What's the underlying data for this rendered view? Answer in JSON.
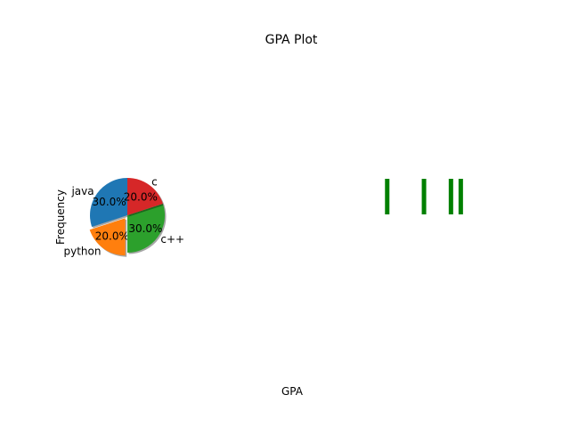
{
  "chart_data": [
    {
      "type": "pie",
      "title": "GPA Plot",
      "xlabel": "GPA",
      "ylabel": "Frequency",
      "slices": [
        {
          "label": "java",
          "value": 30,
          "pct_label": "30.0%",
          "color": "#1f77b4",
          "exploded": false
        },
        {
          "label": "python",
          "value": 20,
          "pct_label": "20.0%",
          "color": "#ff7f0e",
          "exploded": true
        },
        {
          "label": "c++",
          "value": 30,
          "pct_label": "30.0%",
          "color": "#2ca02c",
          "exploded": false
        },
        {
          "label": "c",
          "value": 20,
          "pct_label": "20.0%",
          "color": "#d62728",
          "exploded": false
        }
      ],
      "start_angle_deg": 90,
      "shadow": true
    },
    {
      "type": "bar",
      "title": "",
      "xlabel": "",
      "ylabel": "",
      "x": [
        2.2,
        2.5,
        2.72,
        2.8
      ],
      "heights": [
        1,
        1,
        1,
        1
      ],
      "color": "#008000",
      "axes_visible": false
    }
  ]
}
